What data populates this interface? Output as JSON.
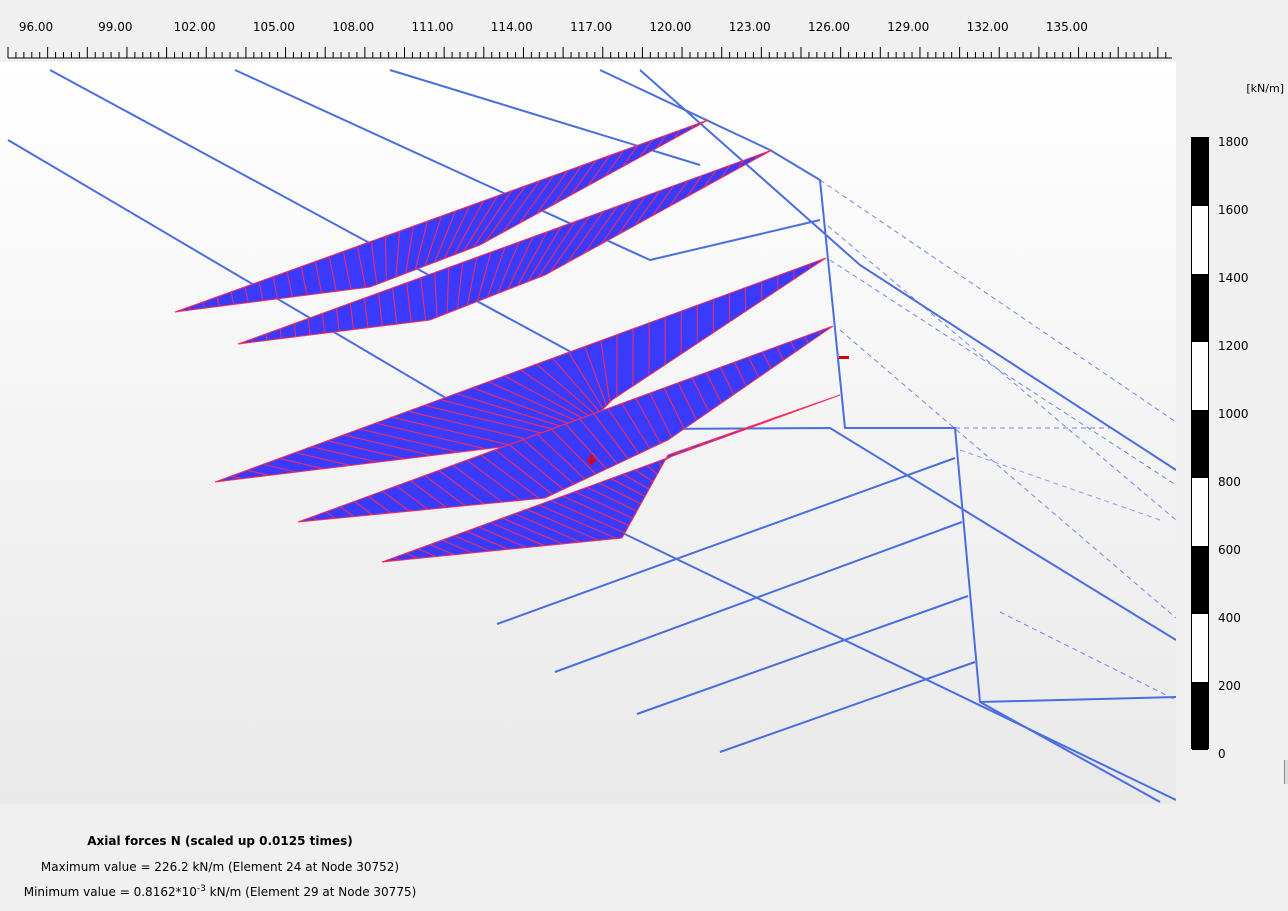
{
  "ruler": {
    "labels": [
      "96.00",
      "99.00",
      "102.00",
      "105.00",
      "108.00",
      "111.00",
      "114.00",
      "117.00",
      "120.00",
      "123.00",
      "126.00",
      "129.00",
      "132.00",
      "135.00"
    ]
  },
  "legend": {
    "unit": "[kN/m]",
    "values": [
      "1800",
      "1600",
      "1400",
      "1200",
      "1000",
      "800",
      "600",
      "400",
      "200",
      "0"
    ]
  },
  "info": {
    "title": "Axial forces N (scaled up 0.0125 times)",
    "max_line": "Maximum value = 226.2 kN/m (Element 24 at Node 30752)",
    "min_prefix": "Minimum value = 0.8162*10",
    "min_exponent": "-3",
    "min_suffix": " kN/m (Element 29 at Node 30775)"
  },
  "colors": {
    "structure": "#4a6ee0",
    "force_fill": "#3a3aff",
    "force_hatch": "#ff2a55",
    "marker": "#e00000"
  },
  "icons": {
    "min_marker": "minus-sign",
    "max_marker": "plus-sign"
  }
}
